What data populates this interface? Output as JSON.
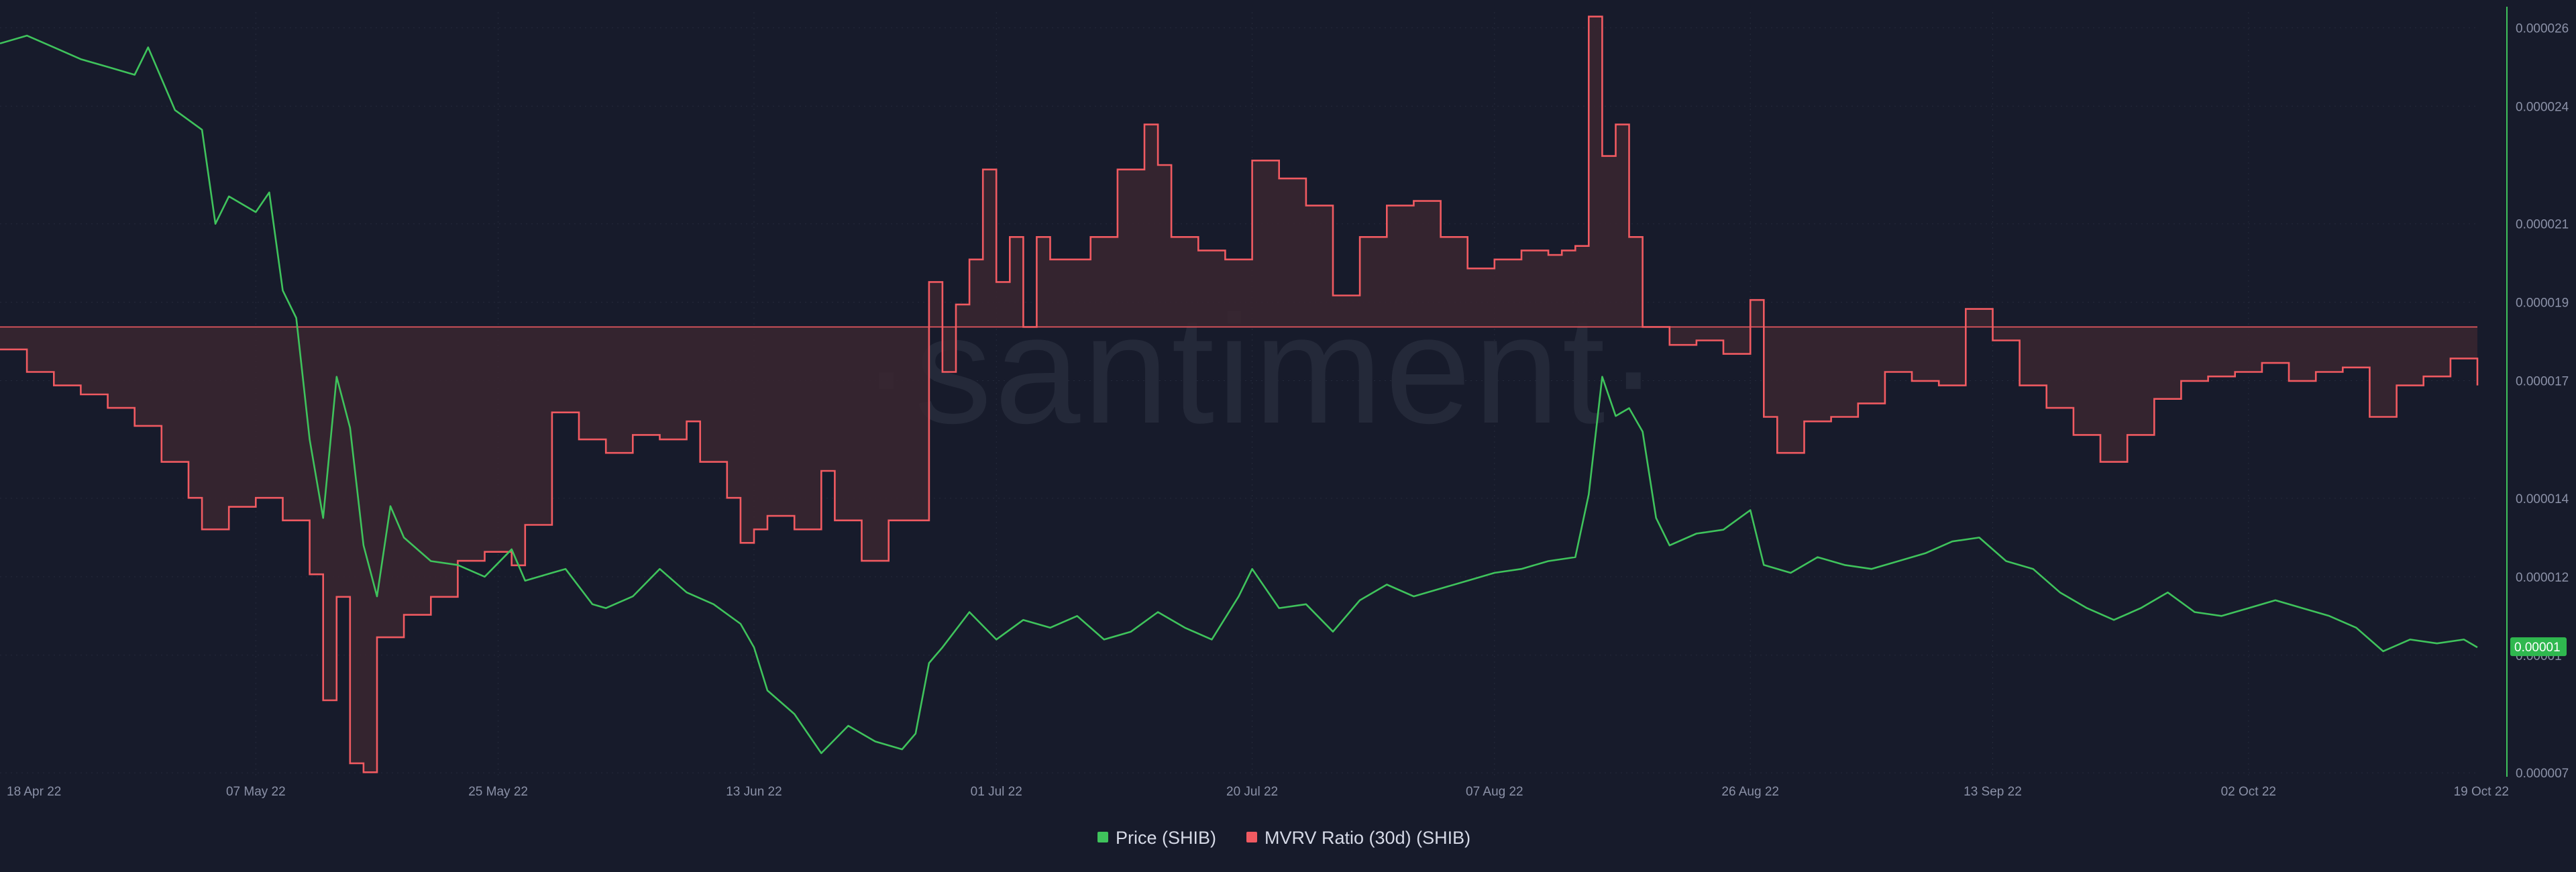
{
  "watermark": "·santiment·",
  "chart_data": {
    "type": "line",
    "x_range": [
      "2022-04-18",
      "2022-10-19"
    ],
    "x_ticks": [
      "18 Apr 22",
      "07 May 22",
      "25 May 22",
      "13 Jun 22",
      "01 Jul 22",
      "20 Jul 22",
      "07 Aug 22",
      "26 Aug 22",
      "13 Sep 22",
      "02 Oct 22",
      "19 Oct 22"
    ],
    "y_right_ticks": [
      "0.000026",
      "0.000024",
      "0.000021",
      "0.000019",
      "0.000017",
      "0.000014",
      "0.000012",
      "0.00001",
      "0.000007"
    ],
    "y_right_range": [
      6.9e-06,
      2.64e-05
    ],
    "current_price_label": "0.00001",
    "legend_position": "bottom-center",
    "colors": {
      "price": "#3fc35c",
      "mvrv": "#f05a61",
      "mvrv_fill": "#3a2630",
      "baseline": "#f05a61"
    },
    "series": [
      {
        "name": "Price (SHIB)",
        "axis": "right",
        "points": [
          [
            "2022-04-18",
            2.56e-05
          ],
          [
            "2022-04-20",
            2.58e-05
          ],
          [
            "2022-04-22",
            2.55e-05
          ],
          [
            "2022-04-24",
            2.52e-05
          ],
          [
            "2022-04-26",
            2.5e-05
          ],
          [
            "2022-04-28",
            2.48e-05
          ],
          [
            "2022-04-29",
            2.55e-05
          ],
          [
            "2022-05-01",
            2.39e-05
          ],
          [
            "2022-05-03",
            2.34e-05
          ],
          [
            "2022-05-04",
            2.1e-05
          ],
          [
            "2022-05-05",
            2.17e-05
          ],
          [
            "2022-05-07",
            2.13e-05
          ],
          [
            "2022-05-08",
            2.18e-05
          ],
          [
            "2022-05-09",
            1.93e-05
          ],
          [
            "2022-05-10",
            1.86e-05
          ],
          [
            "2022-05-11",
            1.55e-05
          ],
          [
            "2022-05-12",
            1.35e-05
          ],
          [
            "2022-05-13",
            1.71e-05
          ],
          [
            "2022-05-14",
            1.58e-05
          ],
          [
            "2022-05-15",
            1.28e-05
          ],
          [
            "2022-05-16",
            1.15e-05
          ],
          [
            "2022-05-17",
            1.38e-05
          ],
          [
            "2022-05-18",
            1.3e-05
          ],
          [
            "2022-05-20",
            1.24e-05
          ],
          [
            "2022-05-22",
            1.23e-05
          ],
          [
            "2022-05-24",
            1.2e-05
          ],
          [
            "2022-05-26",
            1.27e-05
          ],
          [
            "2022-05-27",
            1.19e-05
          ],
          [
            "2022-05-29",
            1.21e-05
          ],
          [
            "2022-05-30",
            1.22e-05
          ],
          [
            "2022-06-01",
            1.13e-05
          ],
          [
            "2022-06-02",
            1.12e-05
          ],
          [
            "2022-06-04",
            1.15e-05
          ],
          [
            "2022-06-06",
            1.22e-05
          ],
          [
            "2022-06-08",
            1.16e-05
          ],
          [
            "2022-06-10",
            1.13e-05
          ],
          [
            "2022-06-12",
            1.08e-05
          ],
          [
            "2022-06-13",
            1.02e-05
          ],
          [
            "2022-06-14",
            9.1e-06
          ],
          [
            "2022-06-16",
            8.5e-06
          ],
          [
            "2022-06-18",
            7.5e-06
          ],
          [
            "2022-06-20",
            8.2e-06
          ],
          [
            "2022-06-22",
            7.8e-06
          ],
          [
            "2022-06-24",
            7.6e-06
          ],
          [
            "2022-06-25",
            8e-06
          ],
          [
            "2022-06-26",
            9.8e-06
          ],
          [
            "2022-06-27",
            1.02e-05
          ],
          [
            "2022-06-29",
            1.11e-05
          ],
          [
            "2022-07-01",
            1.04e-05
          ],
          [
            "2022-07-03",
            1.09e-05
          ],
          [
            "2022-07-05",
            1.07e-05
          ],
          [
            "2022-07-07",
            1.1e-05
          ],
          [
            "2022-07-09",
            1.04e-05
          ],
          [
            "2022-07-11",
            1.06e-05
          ],
          [
            "2022-07-13",
            1.11e-05
          ],
          [
            "2022-07-15",
            1.07e-05
          ],
          [
            "2022-07-17",
            1.04e-05
          ],
          [
            "2022-07-19",
            1.15e-05
          ],
          [
            "2022-07-20",
            1.22e-05
          ],
          [
            "2022-07-22",
            1.12e-05
          ],
          [
            "2022-07-24",
            1.13e-05
          ],
          [
            "2022-07-26",
            1.06e-05
          ],
          [
            "2022-07-28",
            1.14e-05
          ],
          [
            "2022-07-30",
            1.18e-05
          ],
          [
            "2022-08-01",
            1.15e-05
          ],
          [
            "2022-08-03",
            1.17e-05
          ],
          [
            "2022-08-05",
            1.19e-05
          ],
          [
            "2022-08-07",
            1.21e-05
          ],
          [
            "2022-08-09",
            1.22e-05
          ],
          [
            "2022-08-11",
            1.24e-05
          ],
          [
            "2022-08-13",
            1.25e-05
          ],
          [
            "2022-08-14",
            1.41e-05
          ],
          [
            "2022-08-15",
            1.71e-05
          ],
          [
            "2022-08-16",
            1.61e-05
          ],
          [
            "2022-08-17",
            1.63e-05
          ],
          [
            "2022-08-18",
            1.57e-05
          ],
          [
            "2022-08-19",
            1.35e-05
          ],
          [
            "2022-08-20",
            1.28e-05
          ],
          [
            "2022-08-22",
            1.31e-05
          ],
          [
            "2022-08-24",
            1.32e-05
          ],
          [
            "2022-08-26",
            1.37e-05
          ],
          [
            "2022-08-27",
            1.23e-05
          ],
          [
            "2022-08-29",
            1.21e-05
          ],
          [
            "2022-08-31",
            1.25e-05
          ],
          [
            "2022-09-02",
            1.23e-05
          ],
          [
            "2022-09-04",
            1.22e-05
          ],
          [
            "2022-09-06",
            1.24e-05
          ],
          [
            "2022-09-08",
            1.26e-05
          ],
          [
            "2022-09-10",
            1.29e-05
          ],
          [
            "2022-09-12",
            1.3e-05
          ],
          [
            "2022-09-14",
            1.24e-05
          ],
          [
            "2022-09-16",
            1.22e-05
          ],
          [
            "2022-09-18",
            1.16e-05
          ],
          [
            "2022-09-20",
            1.12e-05
          ],
          [
            "2022-09-22",
            1.09e-05
          ],
          [
            "2022-09-24",
            1.12e-05
          ],
          [
            "2022-09-26",
            1.16e-05
          ],
          [
            "2022-09-28",
            1.11e-05
          ],
          [
            "2022-09-30",
            1.1e-05
          ],
          [
            "2022-10-02",
            1.12e-05
          ],
          [
            "2022-10-04",
            1.14e-05
          ],
          [
            "2022-10-06",
            1.12e-05
          ],
          [
            "2022-10-08",
            1.1e-05
          ],
          [
            "2022-10-10",
            1.07e-05
          ],
          [
            "2022-10-12",
            1.01e-05
          ],
          [
            "2022-10-14",
            1.04e-05
          ],
          [
            "2022-10-16",
            1.03e-05
          ],
          [
            "2022-10-18",
            1.04e-05
          ],
          [
            "2022-10-19",
            1.02e-05
          ]
        ]
      },
      {
        "name": "MVRV Ratio (30d) (SHIB)",
        "axis": "left-hidden",
        "baseline": 0,
        "range": [
          -1,
          0.7
        ],
        "points": [
          [
            "2022-04-18",
            -0.05
          ],
          [
            "2022-04-20",
            -0.1
          ],
          [
            "2022-04-22",
            -0.13
          ],
          [
            "2022-04-24",
            -0.15
          ],
          [
            "2022-04-26",
            -0.18
          ],
          [
            "2022-04-28",
            -0.22
          ],
          [
            "2022-04-30",
            -0.3
          ],
          [
            "2022-05-02",
            -0.38
          ],
          [
            "2022-05-03",
            -0.45
          ],
          [
            "2022-05-05",
            -0.4
          ],
          [
            "2022-05-07",
            -0.38
          ],
          [
            "2022-05-09",
            -0.43
          ],
          [
            "2022-05-11",
            -0.55
          ],
          [
            "2022-05-12",
            -0.83
          ],
          [
            "2022-05-13",
            -0.6
          ],
          [
            "2022-05-14",
            -0.97
          ],
          [
            "2022-05-15",
            -0.99
          ],
          [
            "2022-05-16",
            -0.69
          ],
          [
            "2022-05-18",
            -0.64
          ],
          [
            "2022-05-20",
            -0.6
          ],
          [
            "2022-05-22",
            -0.52
          ],
          [
            "2022-05-24",
            -0.5
          ],
          [
            "2022-05-26",
            -0.53
          ],
          [
            "2022-05-27",
            -0.44
          ],
          [
            "2022-05-29",
            -0.19
          ],
          [
            "2022-05-31",
            -0.25
          ],
          [
            "2022-06-02",
            -0.28
          ],
          [
            "2022-06-04",
            -0.24
          ],
          [
            "2022-06-06",
            -0.25
          ],
          [
            "2022-06-08",
            -0.21
          ],
          [
            "2022-06-09",
            -0.3
          ],
          [
            "2022-06-11",
            -0.38
          ],
          [
            "2022-06-12",
            -0.48
          ],
          [
            "2022-06-13",
            -0.45
          ],
          [
            "2022-06-14",
            -0.42
          ],
          [
            "2022-06-16",
            -0.45
          ],
          [
            "2022-06-18",
            -0.32
          ],
          [
            "2022-06-19",
            -0.43
          ],
          [
            "2022-06-21",
            -0.52
          ],
          [
            "2022-06-23",
            -0.43
          ],
          [
            "2022-06-25",
            -0.43
          ],
          [
            "2022-06-26",
            0.1
          ],
          [
            "2022-06-27",
            -0.1
          ],
          [
            "2022-06-28",
            0.05
          ],
          [
            "2022-06-29",
            0.15
          ],
          [
            "2022-06-30",
            0.35
          ],
          [
            "2022-07-01",
            0.1
          ],
          [
            "2022-07-02",
            0.2
          ],
          [
            "2022-07-03",
            0.0
          ],
          [
            "2022-07-04",
            0.2
          ],
          [
            "2022-07-05",
            0.15
          ],
          [
            "2022-07-08",
            0.2
          ],
          [
            "2022-07-10",
            0.35
          ],
          [
            "2022-07-12",
            0.45
          ],
          [
            "2022-07-13",
            0.36
          ],
          [
            "2022-07-14",
            0.2
          ],
          [
            "2022-07-16",
            0.17
          ],
          [
            "2022-07-18",
            0.15
          ],
          [
            "2022-07-20",
            0.37
          ],
          [
            "2022-07-22",
            0.33
          ],
          [
            "2022-07-24",
            0.27
          ],
          [
            "2022-07-26",
            0.07
          ],
          [
            "2022-07-28",
            0.2
          ],
          [
            "2022-07-30",
            0.27
          ],
          [
            "2022-08-01",
            0.28
          ],
          [
            "2022-08-03",
            0.2
          ],
          [
            "2022-08-05",
            0.13
          ],
          [
            "2022-08-07",
            0.15
          ],
          [
            "2022-08-09",
            0.17
          ],
          [
            "2022-08-11",
            0.16
          ],
          [
            "2022-08-12",
            0.17
          ],
          [
            "2022-08-13",
            0.18
          ],
          [
            "2022-08-14",
            0.69
          ],
          [
            "2022-08-15",
            0.38
          ],
          [
            "2022-08-16",
            0.45
          ],
          [
            "2022-08-17",
            0.2
          ],
          [
            "2022-08-18",
            0.0
          ],
          [
            "2022-08-20",
            -0.04
          ],
          [
            "2022-08-22",
            -0.03
          ],
          [
            "2022-08-24",
            -0.06
          ],
          [
            "2022-08-26",
            0.06
          ],
          [
            "2022-08-27",
            -0.2
          ],
          [
            "2022-08-28",
            -0.28
          ],
          [
            "2022-08-30",
            -0.21
          ],
          [
            "2022-09-01",
            -0.2
          ],
          [
            "2022-09-03",
            -0.17
          ],
          [
            "2022-09-05",
            -0.1
          ],
          [
            "2022-09-07",
            -0.12
          ],
          [
            "2022-09-09",
            -0.13
          ],
          [
            "2022-09-11",
            0.04
          ],
          [
            "2022-09-13",
            -0.03
          ],
          [
            "2022-09-15",
            -0.13
          ],
          [
            "2022-09-17",
            -0.18
          ],
          [
            "2022-09-19",
            -0.24
          ],
          [
            "2022-09-21",
            -0.3
          ],
          [
            "2022-09-23",
            -0.24
          ],
          [
            "2022-09-25",
            -0.16
          ],
          [
            "2022-09-27",
            -0.12
          ],
          [
            "2022-09-29",
            -0.11
          ],
          [
            "2022-10-01",
            -0.1
          ],
          [
            "2022-10-03",
            -0.08
          ],
          [
            "2022-10-05",
            -0.12
          ],
          [
            "2022-10-07",
            -0.1
          ],
          [
            "2022-10-09",
            -0.09
          ],
          [
            "2022-10-11",
            -0.2
          ],
          [
            "2022-10-13",
            -0.13
          ],
          [
            "2022-10-15",
            -0.11
          ],
          [
            "2022-10-17",
            -0.07
          ],
          [
            "2022-10-19",
            -0.13
          ]
        ]
      }
    ]
  }
}
